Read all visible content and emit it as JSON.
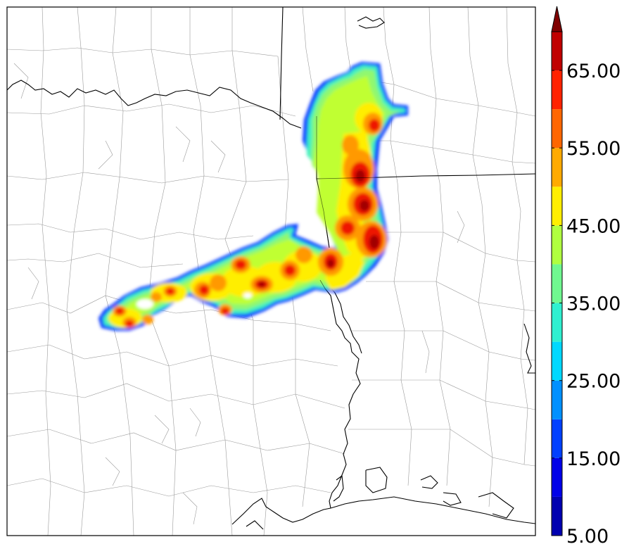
{
  "colorbar": {
    "tick_labels": [
      "5.00",
      "15.00",
      "25.00",
      "35.00",
      "45.00",
      "55.00",
      "65.00"
    ],
    "levels": [
      5,
      10,
      15,
      20,
      25,
      30,
      35,
      40,
      45,
      50,
      55,
      60,
      65,
      70
    ],
    "colors": [
      "#0000b0",
      "#0000e8",
      "#0040ff",
      "#0090ff",
      "#00d8ff",
      "#30f0d0",
      "#70f890",
      "#b0ff40",
      "#ffee00",
      "#ffaa00",
      "#ff6600",
      "#ff2200",
      "#c00000",
      "#800000"
    ],
    "extend": "max"
  }
}
